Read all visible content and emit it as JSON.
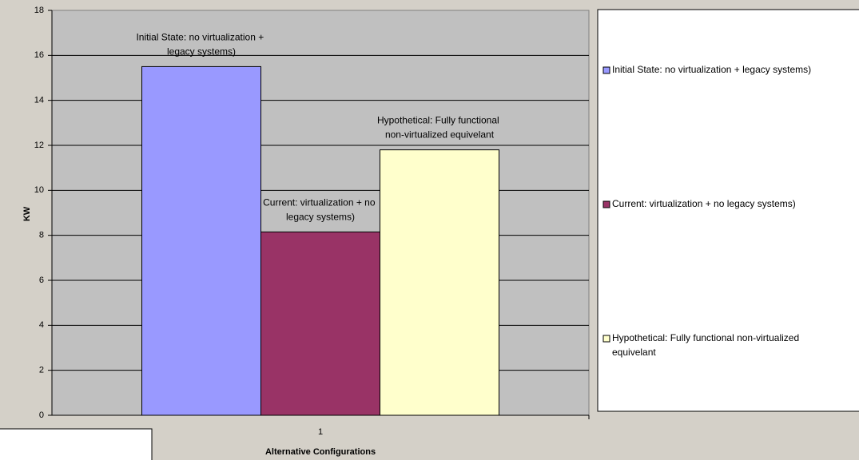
{
  "chart_data": {
    "type": "bar",
    "categories": [
      "1"
    ],
    "series": [
      {
        "name": "Initial State: no virtualization + legacy systems)",
        "color": "#9999ff",
        "values": [
          15.5
        ]
      },
      {
        "name": "Current: virtualization + no legacy systems)",
        "color": "#993366",
        "values": [
          8.15
        ]
      },
      {
        "name": "Hypothetical: Fully functional non-virtualized equivelant",
        "color": "#ffffcc",
        "values": [
          11.8
        ]
      }
    ],
    "xlabel": "Alternative Configurations",
    "ylabel": "KW",
    "ylim": [
      0,
      18
    ],
    "yticks": [
      0,
      2,
      4,
      6,
      8,
      10,
      12,
      14,
      16,
      18
    ],
    "grid": true,
    "legend": "right"
  }
}
